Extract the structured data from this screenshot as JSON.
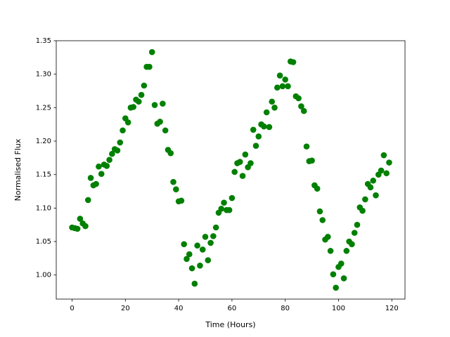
{
  "chart_data": {
    "type": "scatter",
    "xlabel": "Time (Hours)",
    "ylabel": "Normalised Flux",
    "color": "#008000",
    "grid": false,
    "x": [
      0,
      1,
      2,
      3,
      4,
      5,
      6,
      7,
      8,
      9,
      10,
      11,
      12,
      13,
      14,
      15,
      16,
      17,
      18,
      19,
      20,
      21,
      22,
      23,
      24,
      25,
      26,
      27,
      28,
      29,
      30,
      31,
      32,
      33,
      34,
      35,
      36,
      37,
      38,
      39,
      40,
      41,
      42,
      43,
      44,
      45,
      46,
      47,
      48,
      49,
      50,
      51,
      52,
      53,
      54,
      55,
      56,
      57,
      58,
      59,
      60,
      61,
      62,
      63,
      64,
      65,
      66,
      67,
      68,
      69,
      70,
      71,
      72,
      73,
      74,
      75,
      76,
      77,
      78,
      79,
      80,
      81,
      82,
      83,
      84,
      85,
      86,
      87,
      88,
      89,
      90,
      91,
      92,
      93,
      94,
      95,
      96,
      97,
      98,
      99,
      100,
      101,
      102,
      103,
      104,
      105,
      106,
      107,
      108,
      109,
      110,
      111,
      112,
      113,
      114,
      115,
      116,
      117,
      118,
      119
    ],
    "values": [
      1.071,
      1.07,
      1.069,
      1.084,
      1.077,
      1.073,
      1.112,
      1.145,
      1.134,
      1.136,
      1.162,
      1.151,
      1.165,
      1.163,
      1.172,
      1.181,
      1.188,
      1.186,
      1.198,
      1.216,
      1.234,
      1.228,
      1.25,
      1.251,
      1.262,
      1.259,
      1.269,
      1.283,
      1.311,
      1.311,
      1.333,
      1.254,
      1.226,
      1.229,
      1.256,
      1.216,
      1.187,
      1.182,
      1.139,
      1.128,
      1.11,
      1.111,
      1.046,
      1.024,
      1.031,
      1.01,
      0.987,
      1.044,
      1.014,
      1.038,
      1.057,
      1.022,
      1.048,
      1.058,
      1.071,
      1.093,
      1.099,
      1.108,
      1.097,
      1.097,
      1.115,
      1.154,
      1.167,
      1.169,
      1.148,
      1.18,
      1.161,
      1.167,
      1.217,
      1.193,
      1.207,
      1.225,
      1.222,
      1.243,
      1.221,
      1.259,
      1.25,
      1.28,
      1.298,
      1.282,
      1.292,
      1.282,
      1.319,
      1.318,
      1.267,
      1.264,
      1.252,
      1.245,
      1.192,
      1.17,
      1.171,
      1.134,
      1.129,
      1.095,
      1.082,
      1.053,
      1.057,
      1.036,
      1.001,
      0.981,
      1.012,
      1.017,
      0.995,
      1.036,
      1.05,
      1.046,
      1.063,
      1.075,
      1.101,
      1.096,
      1.113,
      1.136,
      1.131,
      1.141,
      1.119,
      1.15,
      1.156,
      1.179,
      1.152,
      1.168
    ],
    "xlim": [
      -5.95,
      124.95
    ],
    "ylim": [
      0.964,
      1.35
    ],
    "xticks": [
      0,
      20,
      40,
      60,
      80,
      100,
      120
    ],
    "yticks": [
      {
        "value": 1.0,
        "label": "1.00"
      },
      {
        "value": 1.05,
        "label": "1.05"
      },
      {
        "value": 1.1,
        "label": "1.10"
      },
      {
        "value": 1.15,
        "label": "1.15"
      },
      {
        "value": 1.2,
        "label": "1.20"
      },
      {
        "value": 1.25,
        "label": "1.25"
      },
      {
        "value": 1.3,
        "label": "1.30"
      },
      {
        "value": 1.35,
        "label": "1.35"
      }
    ]
  }
}
